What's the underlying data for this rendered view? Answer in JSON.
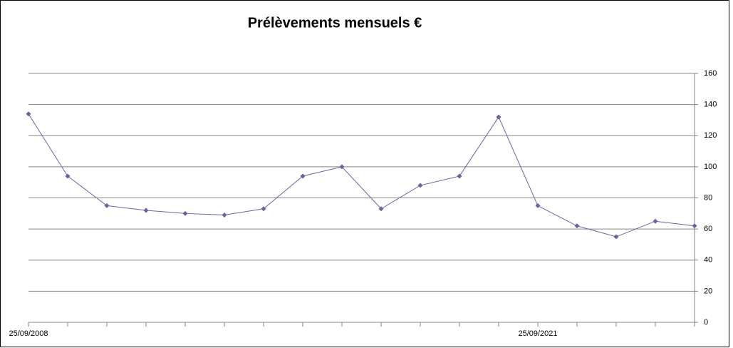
{
  "chart_data": {
    "type": "line",
    "title": "Prélèvements mensuels €",
    "categories": [
      "25/09/2008",
      null,
      null,
      null,
      null,
      null,
      null,
      null,
      null,
      null,
      null,
      null,
      null,
      "25/09/2021",
      null,
      null,
      null,
      null
    ],
    "series": [
      {
        "name": null,
        "color": "#6b62a2",
        "values": [
          134,
          94,
          75,
          72,
          70,
          69,
          73,
          94,
          100,
          73,
          88,
          94,
          132,
          75,
          62,
          55,
          65,
          62
        ]
      }
    ],
    "ylim": [
      0,
      160
    ],
    "yticks": [
      0,
      20,
      40,
      60,
      80,
      100,
      120,
      140,
      160
    ],
    "grid": true
  }
}
